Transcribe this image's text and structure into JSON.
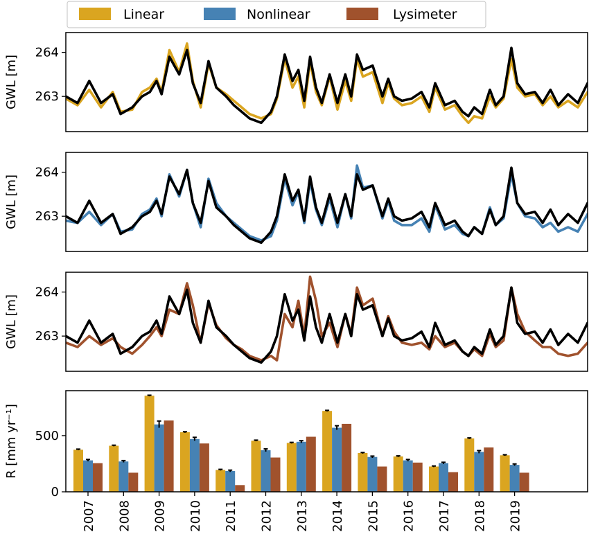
{
  "legend": {
    "items": [
      {
        "label": "Linear",
        "color": "#DAA520"
      },
      {
        "label": "Nonlinear",
        "color": "#4682B4"
      },
      {
        "label": "Lysimeter",
        "color": "#A0522D"
      }
    ]
  },
  "observed_color": "#000000",
  "chart_data": [
    {
      "type": "line",
      "ylabel": "GWL [m]",
      "yticks": [
        263,
        264
      ],
      "ylim": [
        262.2,
        264.45
      ],
      "xlim": [
        2006.6,
        2019.95
      ],
      "anchors_x": [
        2006.6,
        2006.9,
        2007.2,
        2007.5,
        2007.8,
        2008.0,
        2008.3,
        2008.55,
        2008.75,
        2008.92,
        2009.05,
        2009.25,
        2009.5,
        2009.7,
        2009.85,
        2010.05,
        2010.25,
        2010.45,
        2010.7,
        2010.9,
        2011.1,
        2011.3,
        2011.6,
        2011.85,
        2012.0,
        2012.2,
        2012.4,
        2012.55,
        2012.7,
        2012.85,
        2013.0,
        2013.15,
        2013.35,
        2013.55,
        2013.75,
        2013.9,
        2014.05,
        2014.2,
        2014.45,
        2014.7,
        2014.85,
        2015.0,
        2015.2,
        2015.45,
        2015.7,
        2015.9,
        2016.05,
        2016.3,
        2016.55,
        2016.75,
        2016.9,
        2017.05,
        2017.25,
        2017.45,
        2017.6,
        2017.8,
        2018.0,
        2018.15,
        2018.35,
        2018.6,
        2018.8,
        2019.0,
        2019.2,
        2019.45,
        2019.7,
        2019.95
      ],
      "observed": [
        263.0,
        262.85,
        263.35,
        262.85,
        263.05,
        262.6,
        262.75,
        263.0,
        263.1,
        263.35,
        263.05,
        263.9,
        263.5,
        264.05,
        263.3,
        262.85,
        263.8,
        263.2,
        263.0,
        262.8,
        262.65,
        262.5,
        262.4,
        262.65,
        263.0,
        263.95,
        263.35,
        263.6,
        262.9,
        263.9,
        263.2,
        262.85,
        263.5,
        262.85,
        263.5,
        263.0,
        263.95,
        263.6,
        263.7,
        263.0,
        263.4,
        263.0,
        262.9,
        262.95,
        263.1,
        262.75,
        263.3,
        262.8,
        262.9,
        262.65,
        262.55,
        262.75,
        262.6,
        263.15,
        262.8,
        263.0,
        264.1,
        263.3,
        263.05,
        263.1,
        262.85,
        263.15,
        262.8,
        263.05,
        262.85,
        263.3
      ],
      "series": [
        {
          "name": "Linear",
          "color": "#DAA520",
          "values": [
            262.95,
            262.8,
            263.15,
            262.75,
            263.1,
            262.65,
            262.7,
            263.1,
            263.2,
            263.4,
            263.1,
            264.05,
            263.55,
            264.2,
            263.35,
            262.75,
            263.75,
            263.2,
            263.05,
            262.9,
            262.75,
            262.6,
            262.5,
            262.6,
            262.95,
            263.85,
            263.2,
            263.45,
            262.75,
            263.8,
            263.1,
            262.8,
            263.45,
            262.7,
            263.35,
            262.9,
            263.85,
            263.45,
            263.55,
            262.85,
            263.3,
            262.95,
            262.8,
            262.85,
            263.0,
            262.65,
            263.2,
            262.7,
            262.8,
            262.55,
            262.4,
            262.55,
            262.5,
            263.0,
            262.75,
            262.95,
            263.85,
            263.2,
            263.0,
            263.05,
            262.8,
            263.0,
            262.75,
            262.9,
            262.75,
            263.1
          ]
        }
      ]
    },
    {
      "type": "line",
      "ylabel": "GWL [m]",
      "yticks": [
        263,
        264
      ],
      "ylim": [
        262.2,
        264.45
      ],
      "xlim": [
        2006.6,
        2019.95
      ],
      "series": [
        {
          "name": "Nonlinear",
          "color": "#4682B4",
          "values": [
            262.9,
            262.85,
            263.1,
            262.8,
            263.05,
            262.65,
            262.7,
            263.05,
            263.15,
            263.4,
            263.0,
            263.95,
            263.45,
            264.05,
            263.3,
            262.75,
            263.85,
            263.3,
            263.0,
            262.85,
            262.7,
            262.55,
            262.45,
            262.55,
            262.9,
            263.85,
            263.25,
            263.55,
            262.85,
            263.8,
            263.15,
            262.8,
            263.4,
            262.75,
            263.5,
            262.95,
            264.15,
            263.65,
            263.7,
            262.95,
            263.35,
            262.9,
            262.8,
            262.8,
            262.95,
            262.65,
            263.25,
            262.7,
            262.8,
            262.6,
            262.55,
            262.75,
            262.6,
            263.2,
            262.8,
            262.95,
            263.95,
            263.3,
            263.0,
            262.95,
            262.75,
            262.85,
            262.65,
            262.75,
            262.65,
            263.05
          ]
        }
      ]
    },
    {
      "type": "line",
      "ylabel": "GWL [m]",
      "yticks": [
        263,
        264
      ],
      "ylim": [
        262.2,
        264.45
      ],
      "xlim": [
        2006.6,
        2019.95
      ],
      "series": [
        {
          "name": "Lysimeter",
          "color": "#A0522D",
          "values": [
            262.85,
            262.75,
            263.0,
            262.8,
            262.95,
            262.75,
            262.6,
            262.8,
            263.0,
            263.2,
            263.0,
            263.6,
            263.5,
            264.2,
            263.7,
            262.85,
            263.75,
            263.25,
            262.95,
            262.8,
            262.7,
            262.55,
            262.45,
            262.55,
            262.45,
            263.5,
            263.2,
            263.8,
            263.0,
            264.35,
            263.8,
            263.0,
            263.3,
            262.75,
            263.5,
            263.05,
            264.1,
            263.7,
            263.85,
            263.0,
            263.45,
            263.1,
            262.85,
            262.8,
            262.85,
            262.7,
            263.0,
            262.75,
            262.85,
            262.65,
            262.55,
            262.7,
            262.55,
            263.05,
            262.75,
            262.9,
            264.1,
            263.5,
            263.1,
            262.9,
            262.75,
            262.75,
            262.6,
            262.55,
            262.6,
            262.85
          ]
        }
      ]
    },
    {
      "type": "bar",
      "ylabel": "R [mm yr⁻¹]",
      "ylim": [
        0,
        900
      ],
      "yticks": [
        0,
        500
      ],
      "categories": [
        "2007",
        "2008",
        "2009",
        "2010",
        "2011",
        "2012",
        "2013",
        "2014",
        "2015",
        "2016",
        "2017",
        "2018",
        "2019"
      ],
      "series": [
        {
          "name": "Linear",
          "color": "#DAA520",
          "values": [
            375,
            410,
            855,
            530,
            195,
            455,
            435,
            720,
            345,
            315,
            225,
            475,
            325
          ],
          "errors": [
            5,
            5,
            5,
            5,
            5,
            5,
            5,
            5,
            5,
            5,
            5,
            5,
            5
          ]
        },
        {
          "name": "Nonlinear",
          "color": "#4682B4",
          "values": [
            280,
            270,
            600,
            470,
            185,
            370,
            445,
            570,
            310,
            280,
            255,
            355,
            240
          ],
          "errors": [
            8,
            8,
            30,
            15,
            8,
            12,
            10,
            18,
            8,
            8,
            8,
            12,
            8
          ]
        },
        {
          "name": "Lysimeter",
          "color": "#A0522D",
          "values": [
            255,
            170,
            635,
            430,
            60,
            305,
            490,
            605,
            225,
            260,
            175,
            395,
            170
          ],
          "errors": [
            0,
            0,
            0,
            0,
            0,
            0,
            0,
            0,
            0,
            0,
            0,
            0,
            0
          ]
        }
      ]
    }
  ]
}
